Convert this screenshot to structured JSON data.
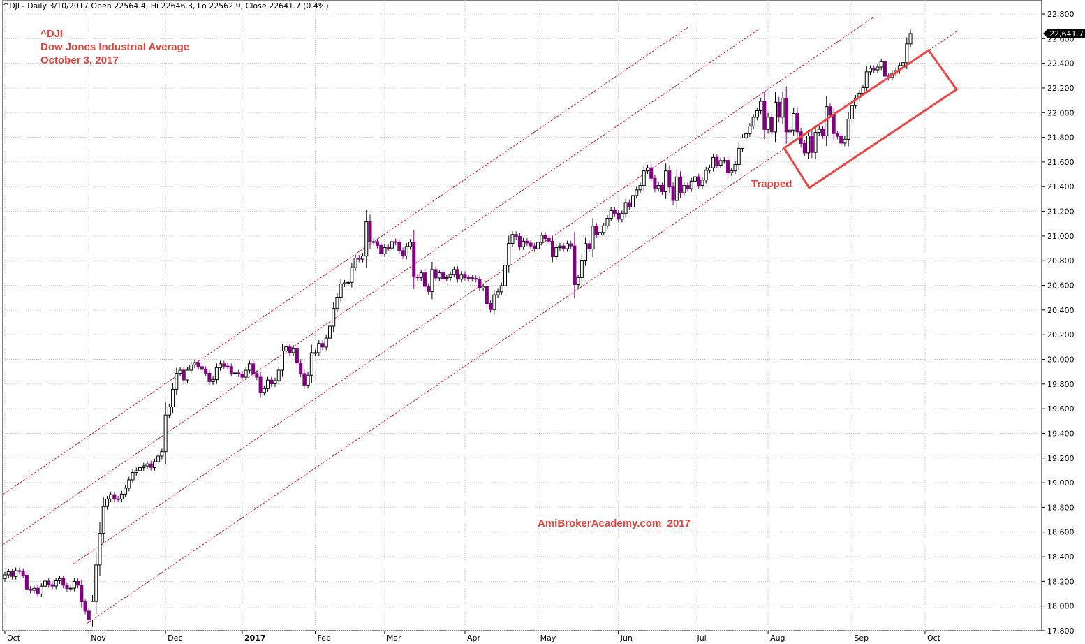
{
  "header": {
    "text": "^DJI - Daily 3/10/2017 Open 22564.4, Hi 22646.3, Lo 22562.9, Close 22641.7 (0.4%)"
  },
  "annotations": {
    "ticker": "^DJI",
    "name": "Dow Jones Industrial Average",
    "date": "October 3, 2017",
    "trapped": "Trapped",
    "watermark": "AmiBrokerAcademy.com  2017"
  },
  "last_price_label": "22,641.7",
  "colors": {
    "bull": "#000000",
    "bear": "#800080",
    "channel": "#e8102a",
    "box": "#ee4444",
    "text_red": "#e8403a"
  },
  "chart_data": {
    "type": "candlestick",
    "title": "^DJI",
    "ylim": [
      17800,
      22800
    ],
    "y_ticks": [
      "22,800",
      "22,600",
      "22,400",
      "22,200",
      "22,000",
      "21,800",
      "21,600",
      "21,400",
      "21,200",
      "21,000",
      "20,800",
      "20,600",
      "20,400",
      "20,200",
      "20,000",
      "19,800",
      "19,600",
      "19,400",
      "19,200",
      "19,000",
      "18,800",
      "18,600",
      "18,400",
      "18,200",
      "18,000",
      "17,800"
    ],
    "x_ticks": [
      {
        "label": "Oct",
        "idx": 0
      },
      {
        "label": "Nov",
        "idx": 23
      },
      {
        "label": "Dec",
        "idx": 44
      },
      {
        "label": "2017",
        "idx": 65,
        "bold": true
      },
      {
        "label": "Feb",
        "idx": 85
      },
      {
        "label": "Mar",
        "idx": 104
      },
      {
        "label": "Apr",
        "idx": 126
      },
      {
        "label": "May",
        "idx": 146
      },
      {
        "label": "Jun",
        "idx": 168
      },
      {
        "label": "Jul",
        "idx": 189
      },
      {
        "label": "Aug",
        "idx": 209
      },
      {
        "label": "Sep",
        "idx": 232
      },
      {
        "label": "Oct",
        "idx": 252
      }
    ],
    "closes": [
      18253,
      18279,
      18240,
      18287,
      18281,
      18250,
      18138,
      18128,
      18144,
      18098,
      18161,
      18202,
      18173,
      18162,
      18205,
      18223,
      18169,
      18142,
      18145,
      18199,
      18169,
      18035,
      17959,
      17888,
      18037,
      18333,
      18589,
      18807,
      18868,
      18903,
      18868,
      18867,
      18908,
      18956,
      19023,
      19083,
      19097,
      19122,
      19136,
      19152,
      19123,
      19170,
      19216,
      19251,
      19549,
      19615,
      19757,
      19886,
      19912,
      19833,
      19912,
      19955,
      19974,
      19941,
      19918,
      19887,
      19819,
      19835,
      19933,
      19964,
      19945,
      19942,
      19887,
      19890,
      19881,
      19855,
      19912,
      19964,
      19885,
      19855,
      19732,
      19763,
      19832,
      19802,
      19827,
      19912,
      20068,
      20101,
      20054,
      20090,
      19971,
      19884,
      19791,
      19871,
      20054,
      20054,
      20129,
      20100,
      20172,
      20269,
      20412,
      20504,
      20611,
      20619,
      20624,
      20743,
      20821,
      20812,
      20837,
      21115,
      20951,
      20954,
      20924,
      20855,
      20906,
      20902,
      20954,
      20950,
      20881,
      20838,
      20915,
      20950,
      20668,
      20662,
      20701,
      20592,
      20550,
      20728,
      20660,
      20701,
      20656,
      20663,
      20689,
      20728,
      20650,
      20689,
      20663,
      20662,
      20656,
      20650,
      20579,
      20591,
      20453,
      20404,
      20523,
      20547,
      20597,
      20763,
      20940,
      21012,
      20996,
      20913,
      20958,
      20943,
      20919,
      20896,
      20949,
      21006,
      20979,
      20958,
      20832,
      20906,
      20919,
      20897,
      20937,
      20920,
      20606,
      20663,
      20804,
      20938,
      20894,
      21080,
      21008,
      21029,
      21082,
      21144,
      21206,
      21184,
      21136,
      21182,
      21271,
      21235,
      21328,
      21374,
      21409,
      21528,
      21553,
      21468,
      21384,
      21410,
      21359,
      21528,
      21397,
      21288,
      21479,
      21350,
      21409,
      21384,
      21445,
      21480,
      21410,
      21454,
      21532,
      21553,
      21637,
      21574,
      21611,
      21613,
      21513,
      21528,
      21580,
      21711,
      21796,
      21830,
      21891,
      21963,
      22016,
      22092,
      21864,
      21963,
      21844,
      22085,
      21963,
      22118,
      21844,
      21859,
      21993,
      21844,
      21750,
      21674,
      21812,
      21678,
      21840,
      21865,
      21813,
      22049,
      21986,
      21830,
      21808,
      21753,
      21784,
      21948,
      22057,
      22118,
      22158,
      22203,
      22331,
      22359,
      22347,
      22370,
      22413,
      22296,
      22285,
      22320,
      22341,
      22381,
      22405,
      22557,
      22642
    ]
  }
}
